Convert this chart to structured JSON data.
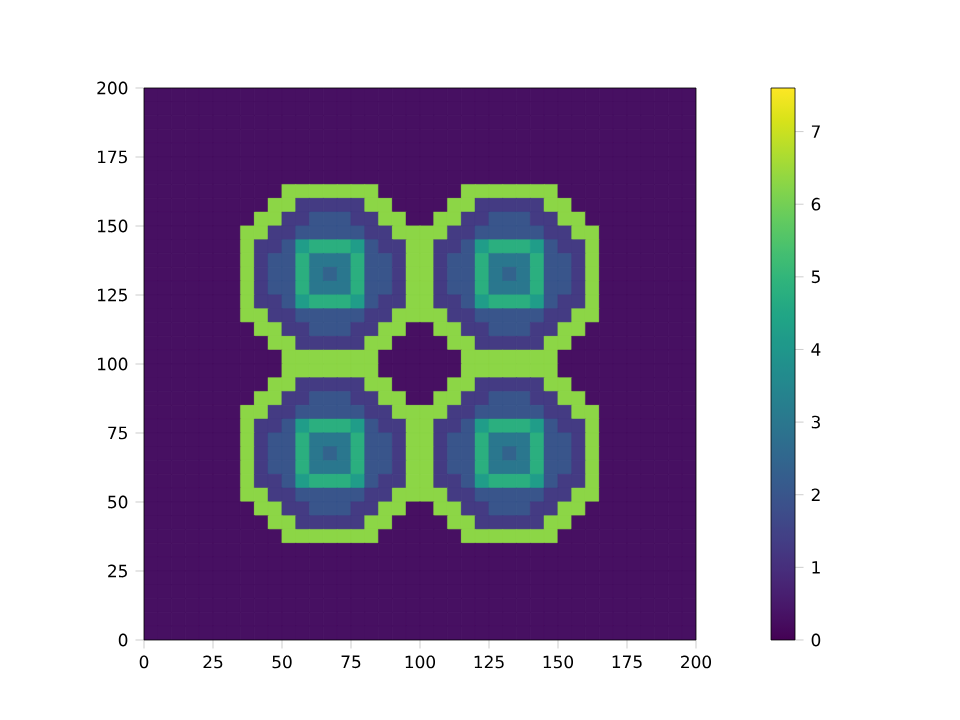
{
  "chart_data": {
    "type": "heatmap",
    "xlim": [
      0,
      200
    ],
    "ylim": [
      0,
      200
    ],
    "xticks": [
      0,
      25,
      50,
      75,
      100,
      125,
      150,
      175,
      200
    ],
    "yticks": [
      0,
      25,
      50,
      75,
      100,
      125,
      150,
      175,
      200
    ],
    "clim": [
      0,
      7.6
    ],
    "cticks": [
      0,
      1,
      2,
      3,
      4,
      5,
      6,
      7
    ],
    "cells": [
      [
        0.3,
        0.3,
        0.3,
        0.3,
        0.3,
        0.3,
        0.3,
        0.3,
        0.3,
        0.3,
        0.3,
        0.3,
        0.3,
        0.3,
        0.3,
        0.3,
        0.3,
        0.3,
        0.3,
        0.3,
        0.3,
        0.3,
        0.3,
        0.3,
        0.3,
        0.3,
        0.3,
        0.3,
        0.3,
        0.3,
        0.3,
        0.3,
        0.3,
        0.3,
        0.3,
        0.3,
        0.3,
        0.3,
        0.3,
        0.3
      ],
      [
        0.3,
        0.3,
        0.3,
        0.3,
        0.3,
        0.3,
        0.3,
        0.3,
        0.3,
        0.3,
        0.3,
        0.3,
        0.3,
        0.3,
        0.3,
        0.3,
        0.3,
        0.3,
        0.3,
        0.3,
        0.3,
        0.3,
        0.3,
        0.3,
        0.3,
        0.3,
        0.3,
        0.3,
        0.3,
        0.3,
        0.3,
        0.3,
        0.3,
        0.3,
        0.3,
        0.3,
        0.3,
        0.3,
        0.3,
        0.3
      ],
      [
        0.3,
        0.3,
        0.3,
        0.3,
        0.3,
        0.3,
        0.3,
        0.3,
        0.3,
        0.3,
        0.3,
        0.3,
        0.3,
        0.3,
        0.3,
        0.3,
        0.3,
        0.3,
        0.3,
        0.3,
        0.3,
        0.3,
        0.3,
        0.3,
        0.3,
        0.3,
        0.3,
        0.3,
        0.3,
        0.3,
        0.3,
        0.3,
        0.3,
        0.3,
        0.3,
        0.3,
        0.3,
        0.3,
        0.3,
        0.3
      ],
      [
        0.3,
        0.3,
        0.3,
        0.3,
        0.3,
        0.3,
        0.3,
        0.3,
        0.3,
        0.3,
        0.3,
        0.3,
        0.3,
        0.3,
        0.3,
        0.3,
        0.3,
        0.3,
        0.3,
        0.3,
        0.3,
        0.3,
        0.3,
        0.3,
        0.3,
        0.3,
        0.3,
        0.3,
        0.3,
        0.3,
        0.3,
        0.3,
        0.3,
        0.3,
        0.3,
        0.3,
        0.3,
        0.3,
        0.3,
        0.3
      ],
      [
        0.3,
        0.3,
        0.3,
        0.3,
        0.3,
        0.3,
        0.3,
        0.3,
        0.3,
        0.3,
        0.3,
        0.3,
        0.3,
        0.3,
        0.3,
        0.3,
        0.3,
        0.3,
        0.3,
        0.3,
        0.3,
        0.3,
        0.3,
        0.3,
        0.3,
        0.3,
        0.3,
        0.3,
        0.3,
        0.3,
        0.3,
        0.3,
        0.3,
        0.3,
        0.3,
        0.3,
        0.3,
        0.3,
        0.3,
        0.3
      ],
      [
        0.3,
        0.3,
        0.3,
        0.3,
        0.3,
        0.3,
        0.3,
        0.3,
        0.3,
        0.3,
        0.3,
        0.3,
        0.3,
        0.3,
        0.3,
        0.3,
        0.3,
        0.3,
        0.3,
        0.3,
        0.3,
        0.3,
        0.3,
        0.3,
        0.3,
        0.3,
        0.3,
        0.3,
        0.3,
        0.3,
        0.3,
        0.3,
        0.3,
        0.3,
        0.3,
        0.3,
        0.3,
        0.3,
        0.3,
        0.3
      ],
      [
        0.3,
        0.3,
        0.3,
        0.3,
        0.3,
        0.3,
        0.3,
        0.3,
        0.3,
        0.3,
        0.3,
        0.3,
        0.3,
        0.3,
        0.3,
        0.3,
        0.3,
        0.3,
        0.3,
        0.3,
        0.3,
        0.3,
        0.3,
        0.3,
        0.3,
        0.3,
        0.3,
        0.3,
        0.3,
        0.3,
        0.3,
        0.3,
        0.3,
        0.3,
        0.3,
        0.3,
        0.3,
        0.3,
        0.3,
        0.3
      ],
      [
        0.3,
        0.3,
        0.3,
        0.3,
        0.3,
        0.3,
        0.3,
        0.3,
        0.3,
        0.3,
        6.3,
        6.3,
        6.3,
        6.3,
        6.3,
        6.3,
        6.3,
        0.3,
        0.3,
        0.3,
        0.3,
        0.3,
        0.3,
        6.3,
        6.3,
        6.3,
        6.3,
        6.3,
        6.3,
        6.3,
        0.3,
        0.3,
        0.3,
        0.3,
        0.3,
        0.3,
        0.3,
        0.3,
        0.3,
        0.3
      ],
      [
        0.3,
        0.3,
        0.3,
        0.3,
        0.3,
        0.3,
        0.3,
        0.3,
        0.3,
        6.3,
        6.3,
        1.3,
        1.3,
        1.3,
        1.3,
        1.3,
        6.3,
        6.3,
        0.3,
        0.3,
        0.3,
        0.3,
        6.3,
        6.3,
        1.3,
        1.3,
        1.3,
        1.3,
        1.3,
        6.3,
        6.3,
        0.3,
        0.3,
        0.3,
        0.3,
        0.3,
        0.3,
        0.3,
        0.3,
        0.3
      ],
      [
        0.3,
        0.3,
        0.3,
        0.3,
        0.3,
        0.3,
        0.3,
        0.3,
        6.3,
        6.3,
        1.3,
        1.3,
        2,
        2,
        2,
        1.3,
        1.3,
        6.3,
        6.3,
        0.3,
        0.3,
        6.3,
        6.3,
        1.3,
        1.3,
        2,
        2,
        2,
        1.3,
        1.3,
        6.3,
        6.3,
        0.3,
        0.3,
        0.3,
        0.3,
        0.3,
        0.3,
        0.3,
        0.3
      ],
      [
        0.3,
        0.3,
        0.3,
        0.3,
        0.3,
        0.3,
        0.3,
        6.3,
        6.3,
        1.3,
        1.3,
        2,
        2,
        2,
        2,
        2,
        1.3,
        1.3,
        6.3,
        6.3,
        6.3,
        6.3,
        1.3,
        1.3,
        2,
        2,
        2,
        2,
        2,
        1.3,
        1.3,
        6.3,
        6.3,
        0.3,
        0.3,
        0.3,
        0.3,
        0.3,
        0.3,
        0.3
      ],
      [
        0.3,
        0.3,
        0.3,
        0.3,
        0.3,
        0.3,
        0.3,
        6.3,
        1.3,
        1.3,
        2,
        4.2,
        4.8,
        4.8,
        4.8,
        4.2,
        2,
        1.3,
        1.3,
        6.3,
        6.3,
        1.3,
        1.3,
        2,
        4.2,
        4.8,
        4.8,
        4.8,
        4.2,
        2,
        1.3,
        1.3,
        6.3,
        0.3,
        0.3,
        0.3,
        0.3,
        0.3,
        0.3,
        0.3
      ],
      [
        0.3,
        0.3,
        0.3,
        0.3,
        0.3,
        0.3,
        0.3,
        6.3,
        1.3,
        2,
        2,
        4.8,
        3,
        3,
        3,
        4.8,
        2,
        2,
        1.3,
        6.3,
        6.3,
        1.3,
        2,
        2,
        4.8,
        3,
        3,
        3,
        4.8,
        2,
        2,
        1.3,
        6.3,
        0.3,
        0.3,
        0.3,
        0.3,
        0.3,
        0.3,
        0.3
      ],
      [
        0.3,
        0.3,
        0.3,
        0.3,
        0.3,
        0.3,
        0.3,
        6.3,
        1.3,
        2,
        2,
        4.8,
        3,
        2.4,
        3,
        4.8,
        2,
        2,
        1.3,
        6.3,
        6.3,
        1.3,
        2,
        2,
        4.8,
        3,
        2.4,
        3,
        4.8,
        2,
        2,
        1.3,
        6.3,
        0.3,
        0.3,
        0.3,
        0.3,
        0.3,
        0.3,
        0.3
      ],
      [
        0.3,
        0.3,
        0.3,
        0.3,
        0.3,
        0.3,
        0.3,
        6.3,
        1.3,
        2,
        2,
        4.8,
        3,
        3,
        3,
        4.8,
        2,
        2,
        1.3,
        6.3,
        6.3,
        1.3,
        2,
        2,
        4.8,
        3,
        3,
        3,
        4.8,
        2,
        2,
        1.3,
        6.3,
        0.3,
        0.3,
        0.3,
        0.3,
        0.3,
        0.3,
        0.3
      ],
      [
        0.3,
        0.3,
        0.3,
        0.3,
        0.3,
        0.3,
        0.3,
        6.3,
        1.3,
        1.3,
        2,
        4.2,
        4.8,
        4.8,
        4.8,
        4.2,
        2,
        1.3,
        1.3,
        6.3,
        6.3,
        1.3,
        1.3,
        2,
        4.2,
        4.8,
        4.8,
        4.8,
        4.2,
        2,
        1.3,
        1.3,
        6.3,
        0.3,
        0.3,
        0.3,
        0.3,
        0.3,
        0.3,
        0.3
      ],
      [
        0.3,
        0.3,
        0.3,
        0.3,
        0.3,
        0.3,
        0.3,
        6.3,
        6.3,
        1.3,
        1.3,
        2,
        2,
        2,
        2,
        2,
        1.3,
        1.3,
        6.3,
        6.3,
        6.3,
        6.3,
        1.3,
        1.3,
        2,
        2,
        2,
        2,
        2,
        1.3,
        1.3,
        6.3,
        6.3,
        0.3,
        0.3,
        0.3,
        0.3,
        0.3,
        0.3,
        0.3
      ],
      [
        0.3,
        0.3,
        0.3,
        0.3,
        0.3,
        0.3,
        0.3,
        0.3,
        6.3,
        6.3,
        1.3,
        1.3,
        2,
        2,
        2,
        1.3,
        1.3,
        6.3,
        6.3,
        0.3,
        0.3,
        6.3,
        6.3,
        1.3,
        1.3,
        2,
        2,
        2,
        1.3,
        1.3,
        6.3,
        6.3,
        0.3,
        0.3,
        0.3,
        0.3,
        0.3,
        0.3,
        0.3,
        0.3
      ],
      [
        0.3,
        0.3,
        0.3,
        0.3,
        0.3,
        0.3,
        0.3,
        0.3,
        0.3,
        6.3,
        6.3,
        1.3,
        1.3,
        1.3,
        1.3,
        1.3,
        6.3,
        6.3,
        0.3,
        0.3,
        0.3,
        0.3,
        6.3,
        6.3,
        1.3,
        1.3,
        1.3,
        1.3,
        1.3,
        6.3,
        6.3,
        0.3,
        0.3,
        0.3,
        0.3,
        0.3,
        0.3,
        0.3,
        0.3,
        0.3
      ],
      [
        0.3,
        0.3,
        0.3,
        0.3,
        0.3,
        0.3,
        0.3,
        0.3,
        0.3,
        0.3,
        6.3,
        6.3,
        6.3,
        6.3,
        6.3,
        6.3,
        6.3,
        0.3,
        0.3,
        0.3,
        0.3,
        0.3,
        0.3,
        6.3,
        6.3,
        6.3,
        6.3,
        6.3,
        6.3,
        6.3,
        0.3,
        0.3,
        0.3,
        0.3,
        0.3,
        0.3,
        0.3,
        0.3,
        0.3,
        0.3
      ],
      [
        0.3,
        0.3,
        0.3,
        0.3,
        0.3,
        0.3,
        0.3,
        0.3,
        0.3,
        0.3,
        6.3,
        6.3,
        6.3,
        6.3,
        6.3,
        6.3,
        6.3,
        0.3,
        0.3,
        0.3,
        0.3,
        0.3,
        0.3,
        6.3,
        6.3,
        6.3,
        6.3,
        6.3,
        6.3,
        6.3,
        0.3,
        0.3,
        0.3,
        0.3,
        0.3,
        0.3,
        0.3,
        0.3,
        0.3,
        0.3
      ],
      [
        0.3,
        0.3,
        0.3,
        0.3,
        0.3,
        0.3,
        0.3,
        0.3,
        0.3,
        6.3,
        6.3,
        1.3,
        1.3,
        1.3,
        1.3,
        1.3,
        6.3,
        6.3,
        0.3,
        0.3,
        0.3,
        0.3,
        6.3,
        6.3,
        1.3,
        1.3,
        1.3,
        1.3,
        1.3,
        6.3,
        6.3,
        0.3,
        0.3,
        0.3,
        0.3,
        0.3,
        0.3,
        0.3,
        0.3,
        0.3
      ],
      [
        0.3,
        0.3,
        0.3,
        0.3,
        0.3,
        0.3,
        0.3,
        0.3,
        6.3,
        6.3,
        1.3,
        1.3,
        2,
        2,
        2,
        1.3,
        1.3,
        6.3,
        6.3,
        0.3,
        0.3,
        6.3,
        6.3,
        1.3,
        1.3,
        2,
        2,
        2,
        1.3,
        1.3,
        6.3,
        6.3,
        0.3,
        0.3,
        0.3,
        0.3,
        0.3,
        0.3,
        0.3,
        0.3
      ],
      [
        0.3,
        0.3,
        0.3,
        0.3,
        0.3,
        0.3,
        0.3,
        6.3,
        6.3,
        1.3,
        1.3,
        2,
        2,
        2,
        2,
        2,
        1.3,
        1.3,
        6.3,
        6.3,
        6.3,
        6.3,
        1.3,
        1.3,
        2,
        2,
        2,
        2,
        2,
        1.3,
        1.3,
        6.3,
        6.3,
        0.3,
        0.3,
        0.3,
        0.3,
        0.3,
        0.3,
        0.3
      ],
      [
        0.3,
        0.3,
        0.3,
        0.3,
        0.3,
        0.3,
        0.3,
        6.3,
        1.3,
        1.3,
        2,
        4.2,
        4.8,
        4.8,
        4.8,
        4.2,
        2,
        1.3,
        1.3,
        6.3,
        6.3,
        1.3,
        1.3,
        2,
        4.2,
        4.8,
        4.8,
        4.8,
        4.2,
        2,
        1.3,
        1.3,
        6.3,
        0.3,
        0.3,
        0.3,
        0.3,
        0.3,
        0.3,
        0.3
      ],
      [
        0.3,
        0.3,
        0.3,
        0.3,
        0.3,
        0.3,
        0.3,
        6.3,
        1.3,
        2,
        2,
        4.8,
        3,
        3,
        3,
        4.8,
        2,
        2,
        1.3,
        6.3,
        6.3,
        1.3,
        2,
        2,
        4.8,
        3,
        3,
        3,
        4.8,
        2,
        2,
        1.3,
        6.3,
        0.3,
        0.3,
        0.3,
        0.3,
        0.3,
        0.3,
        0.3
      ],
      [
        0.3,
        0.3,
        0.3,
        0.3,
        0.3,
        0.3,
        0.3,
        6.3,
        1.3,
        2,
        2,
        4.8,
        3,
        2.4,
        3,
        4.8,
        2,
        2,
        1.3,
        6.3,
        6.3,
        1.3,
        2,
        2,
        4.8,
        3,
        2.4,
        3,
        4.8,
        2,
        2,
        1.3,
        6.3,
        0.3,
        0.3,
        0.3,
        0.3,
        0.3,
        0.3,
        0.3
      ],
      [
        0.3,
        0.3,
        0.3,
        0.3,
        0.3,
        0.3,
        0.3,
        6.3,
        1.3,
        2,
        2,
        4.8,
        3,
        3,
        3,
        4.8,
        2,
        2,
        1.3,
        6.3,
        6.3,
        1.3,
        2,
        2,
        4.8,
        3,
        3,
        3,
        4.8,
        2,
        2,
        1.3,
        6.3,
        0.3,
        0.3,
        0.3,
        0.3,
        0.3,
        0.3,
        0.3
      ],
      [
        0.3,
        0.3,
        0.3,
        0.3,
        0.3,
        0.3,
        0.3,
        6.3,
        1.3,
        1.3,
        2,
        4.2,
        4.8,
        4.8,
        4.8,
        4.2,
        2,
        1.3,
        1.3,
        6.3,
        6.3,
        1.3,
        1.3,
        2,
        4.2,
        4.8,
        4.8,
        4.8,
        4.2,
        2,
        1.3,
        1.3,
        6.3,
        0.3,
        0.3,
        0.3,
        0.3,
        0.3,
        0.3,
        0.3
      ],
      [
        0.3,
        0.3,
        0.3,
        0.3,
        0.3,
        0.3,
        0.3,
        6.3,
        6.3,
        1.3,
        1.3,
        2,
        2,
        2,
        2,
        2,
        1.3,
        1.3,
        6.3,
        6.3,
        6.3,
        6.3,
        1.3,
        1.3,
        2,
        2,
        2,
        2,
        2,
        1.3,
        1.3,
        6.3,
        6.3,
        0.3,
        0.3,
        0.3,
        0.3,
        0.3,
        0.3,
        0.3
      ],
      [
        0.3,
        0.3,
        0.3,
        0.3,
        0.3,
        0.3,
        0.3,
        0.3,
        6.3,
        6.3,
        1.3,
        1.3,
        2,
        2,
        2,
        1.3,
        1.3,
        6.3,
        6.3,
        0.3,
        0.3,
        6.3,
        6.3,
        1.3,
        1.3,
        2,
        2,
        2,
        1.3,
        1.3,
        6.3,
        6.3,
        0.3,
        0.3,
        0.3,
        0.3,
        0.3,
        0.3,
        0.3,
        0.3
      ],
      [
        0.3,
        0.3,
        0.3,
        0.3,
        0.3,
        0.3,
        0.3,
        0.3,
        0.3,
        6.3,
        6.3,
        1.3,
        1.3,
        1.3,
        1.3,
        1.3,
        6.3,
        6.3,
        0.3,
        0.3,
        0.3,
        0.3,
        6.3,
        6.3,
        1.3,
        1.3,
        1.3,
        1.3,
        1.3,
        6.3,
        6.3,
        0.3,
        0.3,
        0.3,
        0.3,
        0.3,
        0.3,
        0.3,
        0.3,
        0.3
      ],
      [
        0.3,
        0.3,
        0.3,
        0.3,
        0.3,
        0.3,
        0.3,
        0.3,
        0.3,
        0.3,
        6.3,
        6.3,
        6.3,
        6.3,
        6.3,
        6.3,
        6.3,
        0.3,
        0.3,
        0.3,
        0.3,
        0.3,
        0.3,
        6.3,
        6.3,
        6.3,
        6.3,
        6.3,
        6.3,
        6.3,
        0.3,
        0.3,
        0.3,
        0.3,
        0.3,
        0.3,
        0.3,
        0.3,
        0.3,
        0.3
      ],
      [
        0.3,
        0.3,
        0.3,
        0.3,
        0.3,
        0.3,
        0.3,
        0.3,
        0.3,
        0.3,
        0.3,
        0.3,
        0.3,
        0.3,
        0.3,
        0.3,
        0.3,
        0.3,
        0.3,
        0.3,
        0.3,
        0.3,
        0.3,
        0.3,
        0.3,
        0.3,
        0.3,
        0.3,
        0.3,
        0.3,
        0.3,
        0.3,
        0.3,
        0.3,
        0.3,
        0.3,
        0.3,
        0.3,
        0.3,
        0.3
      ],
      [
        0.3,
        0.3,
        0.3,
        0.3,
        0.3,
        0.3,
        0.3,
        0.3,
        0.3,
        0.3,
        0.3,
        0.3,
        0.3,
        0.3,
        0.3,
        0.3,
        0.3,
        0.3,
        0.3,
        0.3,
        0.3,
        0.3,
        0.3,
        0.3,
        0.3,
        0.3,
        0.3,
        0.3,
        0.3,
        0.3,
        0.3,
        0.3,
        0.3,
        0.3,
        0.3,
        0.3,
        0.3,
        0.3,
        0.3,
        0.3
      ],
      [
        0.3,
        0.3,
        0.3,
        0.3,
        0.3,
        0.3,
        0.3,
        0.3,
        0.3,
        0.3,
        0.3,
        0.3,
        0.3,
        0.3,
        0.3,
        0.3,
        0.3,
        0.3,
        0.3,
        0.3,
        0.3,
        0.3,
        0.3,
        0.3,
        0.3,
        0.3,
        0.3,
        0.3,
        0.3,
        0.3,
        0.3,
        0.3,
        0.3,
        0.3,
        0.3,
        0.3,
        0.3,
        0.3,
        0.3,
        0.3
      ],
      [
        0.3,
        0.3,
        0.3,
        0.3,
        0.3,
        0.3,
        0.3,
        0.3,
        0.3,
        0.3,
        0.3,
        0.3,
        0.3,
        0.3,
        0.3,
        0.3,
        0.3,
        0.3,
        0.3,
        0.3,
        0.3,
        0.3,
        0.3,
        0.3,
        0.3,
        0.3,
        0.3,
        0.3,
        0.3,
        0.3,
        0.3,
        0.3,
        0.3,
        0.3,
        0.3,
        0.3,
        0.3,
        0.3,
        0.3,
        0.3
      ],
      [
        0.3,
        0.3,
        0.3,
        0.3,
        0.3,
        0.3,
        0.3,
        0.3,
        0.3,
        0.3,
        0.3,
        0.3,
        0.3,
        0.3,
        0.3,
        0.3,
        0.3,
        0.3,
        0.3,
        0.3,
        0.3,
        0.3,
        0.3,
        0.3,
        0.3,
        0.3,
        0.3,
        0.3,
        0.3,
        0.3,
        0.3,
        0.3,
        0.3,
        0.3,
        0.3,
        0.3,
        0.3,
        0.3,
        0.3,
        0.3
      ],
      [
        0.3,
        0.3,
        0.3,
        0.3,
        0.3,
        0.3,
        0.3,
        0.3,
        0.3,
        0.3,
        0.3,
        0.3,
        0.3,
        0.3,
        0.3,
        0.3,
        0.3,
        0.3,
        0.3,
        0.3,
        0.3,
        0.3,
        0.3,
        0.3,
        0.3,
        0.3,
        0.3,
        0.3,
        0.3,
        0.3,
        0.3,
        0.3,
        0.3,
        0.3,
        0.3,
        0.3,
        0.3,
        0.3,
        0.3,
        0.3
      ],
      [
        0.3,
        0.3,
        0.3,
        0.3,
        0.3,
        0.3,
        0.3,
        0.3,
        0.3,
        0.3,
        0.3,
        0.3,
        0.3,
        0.3,
        0.3,
        0.3,
        0.3,
        0.3,
        0.3,
        0.3,
        0.3,
        0.3,
        0.3,
        0.3,
        0.3,
        0.3,
        0.3,
        0.3,
        0.3,
        0.3,
        0.3,
        0.3,
        0.3,
        0.3,
        0.3,
        0.3,
        0.3,
        0.3,
        0.3,
        0.3
      ]
    ]
  }
}
